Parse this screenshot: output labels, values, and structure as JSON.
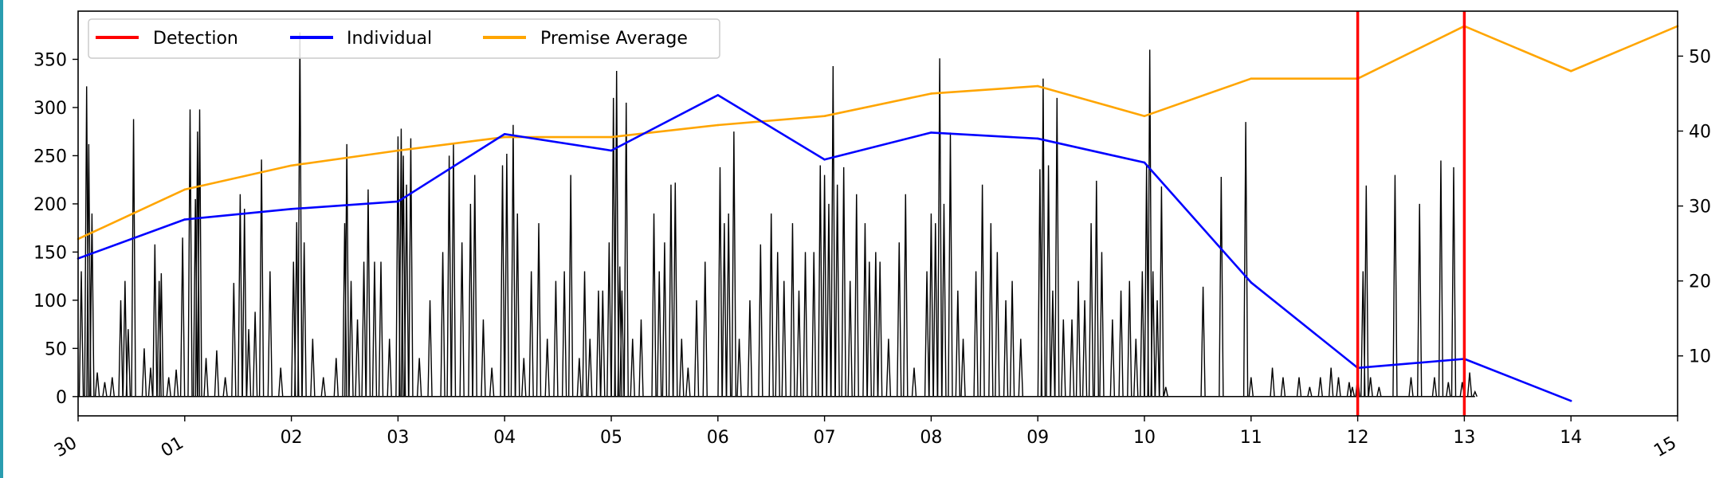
{
  "chart_data": {
    "type": "line",
    "x_tick_labels": [
      "30",
      "01",
      "02",
      "03",
      "04",
      "05",
      "06",
      "07",
      "08",
      "09",
      "10",
      "11",
      "12",
      "13",
      "14",
      "15"
    ],
    "x_tick_positions": [
      0,
      1,
      2,
      3,
      4,
      5,
      6,
      7,
      8,
      9,
      10,
      11,
      12,
      13,
      14,
      15
    ],
    "xlim": [
      0,
      15
    ],
    "left_axis": {
      "ylim": [
        -20,
        400
      ],
      "ticks": [
        0,
        50,
        100,
        150,
        200,
        250,
        300,
        350
      ]
    },
    "right_axis": {
      "ylim": [
        2,
        56
      ],
      "ticks": [
        10,
        20,
        30,
        40,
        50
      ]
    },
    "legend": {
      "placement": "top-left",
      "entries": [
        "Detection",
        "Individual",
        "Premise Average"
      ]
    },
    "colors": {
      "detection": "#ff0000",
      "individual": "#0000ff",
      "premise_average": "#ffa500",
      "activity": "#000000"
    },
    "series": [
      {
        "name": "Individual",
        "axis": "right",
        "x": [
          0,
          1,
          2,
          3,
          4,
          5,
          6,
          7,
          8,
          9,
          10,
          11,
          12,
          13,
          14
        ],
        "values": [
          23,
          28.2,
          29.6,
          30.6,
          39.6,
          37.4,
          44.8,
          36.2,
          39.8,
          39,
          35.8,
          19.8,
          8.4,
          9.6,
          4
        ]
      },
      {
        "name": "Premise Average",
        "axis": "right",
        "x": [
          0,
          1,
          2,
          3,
          4,
          5,
          6,
          7,
          8,
          9,
          10,
          11,
          12,
          13,
          14,
          15
        ],
        "values": [
          25.6,
          32.2,
          35.4,
          37.4,
          39.2,
          39.2,
          40.8,
          42,
          45,
          46,
          42,
          47,
          47,
          54,
          48,
          54
        ]
      },
      {
        "name": "",
        "axis": "left",
        "kind": "activity",
        "x_range": [
          0,
          13.1
        ],
        "peaks": [
          [
            0.03,
            130
          ],
          [
            0.08,
            322
          ],
          [
            0.1,
            262
          ],
          [
            0.13,
            190
          ],
          [
            0.18,
            25
          ],
          [
            0.25,
            15
          ],
          [
            0.32,
            20
          ],
          [
            0.4,
            100
          ],
          [
            0.44,
            120
          ],
          [
            0.47,
            70
          ],
          [
            0.52,
            288
          ],
          [
            0.62,
            50
          ],
          [
            0.68,
            30
          ],
          [
            0.72,
            158
          ],
          [
            0.76,
            120
          ],
          [
            0.78,
            128
          ],
          [
            0.85,
            20
          ],
          [
            0.92,
            28
          ],
          [
            0.98,
            165
          ],
          [
            1.05,
            298
          ],
          [
            1.1,
            205
          ],
          [
            1.12,
            275
          ],
          [
            1.14,
            298
          ],
          [
            1.2,
            40
          ],
          [
            1.3,
            48
          ],
          [
            1.38,
            20
          ],
          [
            1.46,
            118
          ],
          [
            1.52,
            210
          ],
          [
            1.56,
            195
          ],
          [
            1.6,
            70
          ],
          [
            1.66,
            88
          ],
          [
            1.72,
            246
          ],
          [
            1.8,
            130
          ],
          [
            1.9,
            30
          ],
          [
            2.02,
            140
          ],
          [
            2.05,
            181
          ],
          [
            2.08,
            378
          ],
          [
            2.12,
            160
          ],
          [
            2.2,
            60
          ],
          [
            2.3,
            20
          ],
          [
            2.42,
            40
          ],
          [
            2.5,
            180
          ],
          [
            2.52,
            262
          ],
          [
            2.56,
            120
          ],
          [
            2.62,
            80
          ],
          [
            2.68,
            140
          ],
          [
            2.72,
            215
          ],
          [
            2.78,
            140
          ],
          [
            2.84,
            140
          ],
          [
            2.92,
            60
          ],
          [
            3.0,
            270
          ],
          [
            3.03,
            278
          ],
          [
            3.05,
            250
          ],
          [
            3.08,
            220
          ],
          [
            3.12,
            268
          ],
          [
            3.2,
            40
          ],
          [
            3.3,
            100
          ],
          [
            3.42,
            150
          ],
          [
            3.48,
            250
          ],
          [
            3.52,
            262
          ],
          [
            3.6,
            160
          ],
          [
            3.68,
            200
          ],
          [
            3.72,
            230
          ],
          [
            3.8,
            80
          ],
          [
            3.88,
            30
          ],
          [
            3.98,
            240
          ],
          [
            4.02,
            252
          ],
          [
            4.08,
            282
          ],
          [
            4.12,
            190
          ],
          [
            4.18,
            40
          ],
          [
            4.25,
            130
          ],
          [
            4.32,
            180
          ],
          [
            4.4,
            60
          ],
          [
            4.48,
            120
          ],
          [
            4.56,
            130
          ],
          [
            4.62,
            230
          ],
          [
            4.7,
            40
          ],
          [
            4.75,
            130
          ],
          [
            4.8,
            60
          ],
          [
            4.88,
            110
          ],
          [
            4.92,
            110
          ],
          [
            4.98,
            160
          ],
          [
            5.02,
            310
          ],
          [
            5.05,
            338
          ],
          [
            5.08,
            135
          ],
          [
            5.1,
            110
          ],
          [
            5.14,
            305
          ],
          [
            5.2,
            60
          ],
          [
            5.28,
            80
          ],
          [
            5.4,
            190
          ],
          [
            5.45,
            130
          ],
          [
            5.5,
            160
          ],
          [
            5.56,
            220
          ],
          [
            5.6,
            222
          ],
          [
            5.66,
            60
          ],
          [
            5.72,
            30
          ],
          [
            5.8,
            100
          ],
          [
            5.88,
            140
          ],
          [
            6.02,
            238
          ],
          [
            6.06,
            180
          ],
          [
            6.1,
            190
          ],
          [
            6.15,
            275
          ],
          [
            6.2,
            60
          ],
          [
            6.3,
            100
          ],
          [
            6.4,
            158
          ],
          [
            6.5,
            190
          ],
          [
            6.56,
            150
          ],
          [
            6.62,
            120
          ],
          [
            6.7,
            180
          ],
          [
            6.76,
            110
          ],
          [
            6.82,
            150
          ],
          [
            6.9,
            150
          ],
          [
            6.96,
            240
          ],
          [
            7.0,
            230
          ],
          [
            7.04,
            200
          ],
          [
            7.08,
            343
          ],
          [
            7.12,
            220
          ],
          [
            7.18,
            238
          ],
          [
            7.24,
            120
          ],
          [
            7.3,
            210
          ],
          [
            7.38,
            180
          ],
          [
            7.42,
            140
          ],
          [
            7.48,
            150
          ],
          [
            7.52,
            140
          ],
          [
            7.6,
            60
          ],
          [
            7.7,
            160
          ],
          [
            7.76,
            210
          ],
          [
            7.84,
            30
          ],
          [
            7.96,
            130
          ],
          [
            8.0,
            190
          ],
          [
            8.04,
            180
          ],
          [
            8.08,
            351
          ],
          [
            8.12,
            200
          ],
          [
            8.18,
            274
          ],
          [
            8.25,
            110
          ],
          [
            8.3,
            60
          ],
          [
            8.42,
            130
          ],
          [
            8.48,
            220
          ],
          [
            8.56,
            180
          ],
          [
            8.62,
            150
          ],
          [
            8.7,
            100
          ],
          [
            8.76,
            120
          ],
          [
            8.84,
            60
          ],
          [
            9.02,
            236
          ],
          [
            9.05,
            330
          ],
          [
            9.1,
            240
          ],
          [
            9.14,
            110
          ],
          [
            9.18,
            310
          ],
          [
            9.24,
            80
          ],
          [
            9.32,
            80
          ],
          [
            9.38,
            120
          ],
          [
            9.44,
            100
          ],
          [
            9.5,
            180
          ],
          [
            9.55,
            224
          ],
          [
            9.6,
            150
          ],
          [
            9.7,
            80
          ],
          [
            9.78,
            110
          ],
          [
            9.86,
            120
          ],
          [
            9.92,
            60
          ],
          [
            9.98,
            130
          ],
          [
            10.02,
            240
          ],
          [
            10.05,
            360
          ],
          [
            10.08,
            130
          ],
          [
            10.12,
            100
          ],
          [
            10.16,
            218
          ],
          [
            10.2,
            10
          ],
          [
            10.55,
            114
          ],
          [
            10.72,
            228
          ],
          [
            10.95,
            285
          ],
          [
            11.0,
            20
          ],
          [
            11.2,
            30
          ],
          [
            11.3,
            20
          ],
          [
            11.45,
            20
          ],
          [
            11.55,
            10
          ],
          [
            11.65,
            20
          ],
          [
            11.75,
            30
          ],
          [
            11.82,
            20
          ],
          [
            11.92,
            15
          ],
          [
            11.95,
            10
          ],
          [
            12.0,
            20
          ],
          [
            12.05,
            130
          ],
          [
            12.08,
            219
          ],
          [
            12.12,
            20
          ],
          [
            12.2,
            10
          ],
          [
            12.35,
            230
          ],
          [
            12.5,
            20
          ],
          [
            12.58,
            200
          ],
          [
            12.72,
            20
          ],
          [
            12.78,
            245
          ],
          [
            12.85,
            15
          ],
          [
            12.9,
            238
          ],
          [
            12.98,
            15
          ],
          [
            13.05,
            25
          ],
          [
            13.1,
            5
          ]
        ]
      }
    ],
    "detection_lines_x": [
      12,
      13
    ]
  }
}
